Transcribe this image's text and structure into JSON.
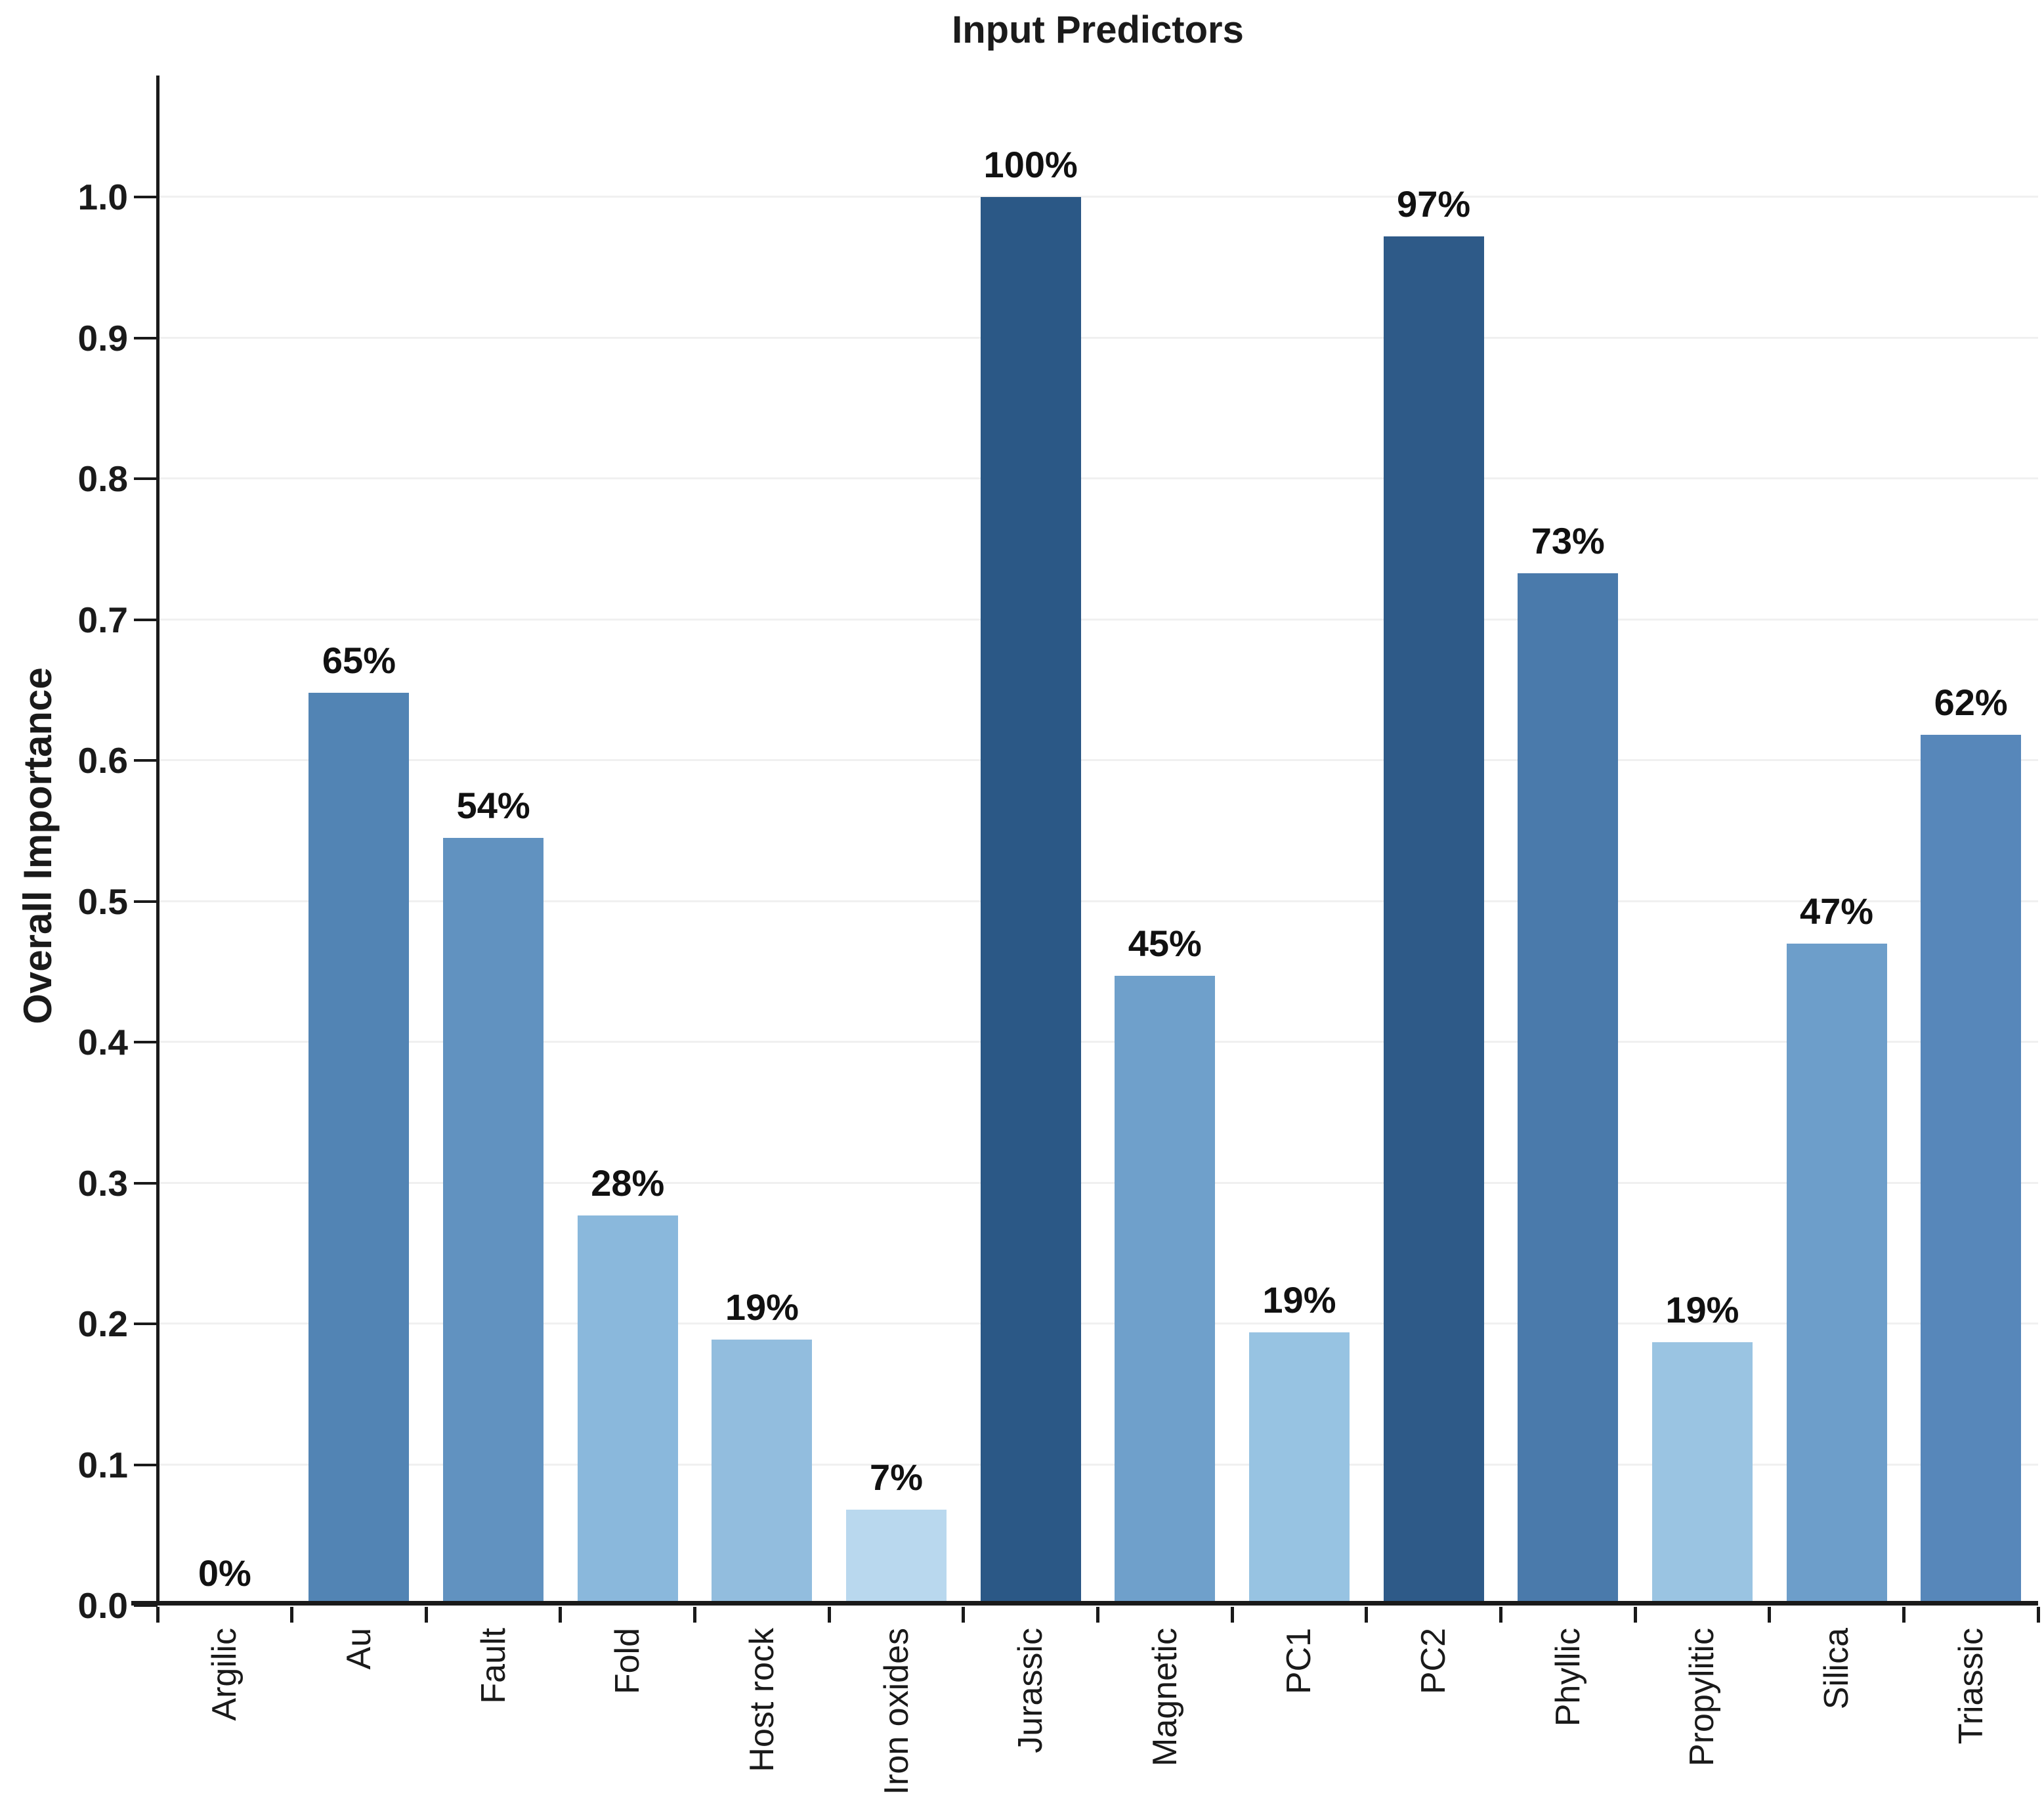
{
  "chart_data": {
    "type": "bar",
    "title": "Input Predictors",
    "ylabel": "Overall Importance",
    "xlabel": "",
    "categories": [
      "Argilic",
      "Au",
      "Fault",
      "Fold",
      "Host rock",
      "Iron oxides",
      "Jurassic",
      "Magnetic",
      "PC1",
      "PC2",
      "Phyllic",
      "Propylitic",
      "Silica",
      "Triassic"
    ],
    "values": [
      0.0,
      0.648,
      0.545,
      0.277,
      0.189,
      0.068,
      1.0,
      0.447,
      0.194,
      0.972,
      0.733,
      0.187,
      0.47,
      0.618
    ],
    "bar_labels": [
      "0%",
      "65%",
      "54%",
      "28%",
      "19%",
      "7%",
      "100%",
      "45%",
      "19%",
      "97%",
      "73%",
      "19%",
      "47%",
      "62%"
    ],
    "bar_colors": [
      "#c9e2f3",
      "#5284b4",
      "#6192c0",
      "#8ab8dc",
      "#92bdde",
      "#b9d8ee",
      "#2b5886",
      "#6fa0cb",
      "#97c3e2",
      "#2e5a88",
      "#4a7aab",
      "#9ac4e2",
      "#6d9eca",
      "#5787ba"
    ],
    "yticks": [
      "0.0",
      "0.1",
      "0.2",
      "0.3",
      "0.4",
      "0.5",
      "0.6",
      "0.7",
      "0.8",
      "0.9",
      "1.0"
    ],
    "ylim": [
      0.0,
      1.086
    ],
    "grid": "horizontal",
    "legend": "none",
    "gridline_color": "#f0f0f0",
    "axis_color": "#1a1a1a"
  }
}
